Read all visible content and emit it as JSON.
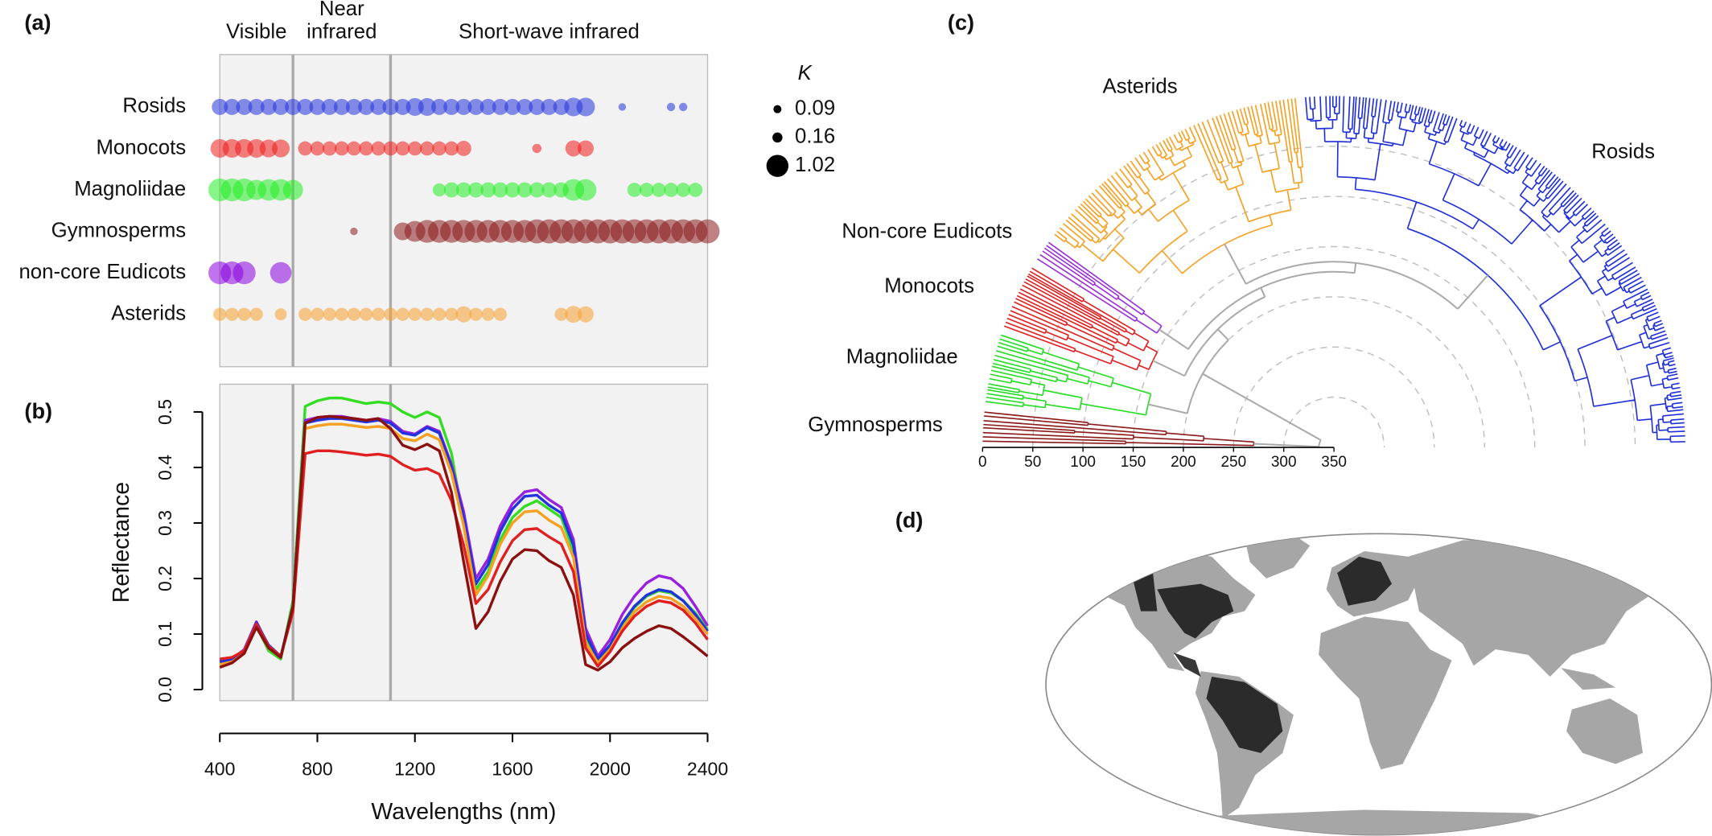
{
  "chart_data": [
    {
      "type": "scatter",
      "panel_label": "(a)",
      "x": [
        400,
        450,
        500,
        550,
        600,
        650,
        700,
        750,
        800,
        850,
        900,
        950,
        1000,
        1050,
        1100,
        1150,
        1200,
        1250,
        1300,
        1350,
        1400,
        1450,
        1500,
        1550,
        1600,
        1650,
        1700,
        1750,
        1800,
        1850,
        1900,
        1950,
        2000,
        2050,
        2100,
        2150,
        2200,
        2250,
        2300,
        2350,
        2400
      ],
      "xlim": [
        400,
        2400
      ],
      "vlines": [
        700,
        1100
      ],
      "regions": [
        {
          "lines": [
            "Visible"
          ]
        },
        {
          "lines": [
            "Near",
            "infrared"
          ]
        },
        {
          "lines": [
            "Short-wave infrared"
          ]
        }
      ],
      "series": [
        {
          "name": "Rosids",
          "color": "#2233dd",
          "values": [
            0.45,
            0.45,
            0.45,
            0.45,
            0.45,
            0.45,
            0.45,
            0.45,
            0.45,
            0.45,
            0.45,
            0.45,
            0.45,
            0.45,
            0.45,
            0.45,
            0.55,
            0.55,
            0.45,
            0.45,
            0.45,
            0.45,
            0.45,
            0.45,
            0.45,
            0.45,
            0.45,
            0.45,
            0.45,
            0.6,
            0.6,
            null,
            null,
            0.1,
            null,
            null,
            null,
            0.12,
            0.12,
            null,
            null
          ]
        },
        {
          "name": "Monocots",
          "color": "#ee1c1c",
          "values": [
            0.6,
            0.6,
            0.6,
            0.6,
            0.55,
            0.55,
            null,
            0.35,
            0.35,
            0.35,
            0.35,
            0.35,
            0.35,
            0.35,
            0.35,
            0.35,
            0.35,
            0.35,
            0.35,
            0.35,
            0.4,
            null,
            null,
            null,
            null,
            null,
            0.15,
            null,
            null,
            0.45,
            0.45,
            null,
            null,
            null,
            null,
            null,
            null,
            null,
            null,
            null,
            null
          ]
        },
        {
          "name": "Magnoliidae",
          "color": "#22ee22",
          "values": [
            0.9,
            0.9,
            0.9,
            0.7,
            0.8,
            0.8,
            0.7,
            null,
            null,
            null,
            null,
            null,
            null,
            null,
            null,
            null,
            null,
            null,
            0.3,
            0.4,
            0.4,
            0.4,
            0.4,
            0.4,
            0.4,
            0.4,
            0.4,
            0.4,
            0.4,
            0.8,
            0.8,
            null,
            null,
            null,
            0.35,
            0.35,
            0.35,
            0.35,
            0.35,
            0.35,
            null
          ]
        },
        {
          "name": "Gymnosperms",
          "color": "#8b1a1a",
          "values": [
            null,
            null,
            null,
            null,
            null,
            null,
            null,
            null,
            null,
            null,
            null,
            0.1,
            null,
            null,
            null,
            0.55,
            0.75,
            0.9,
            0.9,
            0.9,
            0.9,
            0.9,
            0.9,
            0.9,
            0.9,
            0.9,
            1.0,
            1.0,
            1.0,
            1.0,
            1.0,
            1.0,
            1.0,
            1.0,
            1.0,
            1.0,
            1.0,
            1.0,
            1.0,
            1.0,
            1.0
          ]
        },
        {
          "name": "non-core Eudicots",
          "color": "#8a00e0",
          "values": [
            0.9,
            0.9,
            0.9,
            null,
            null,
            0.8,
            null,
            null,
            null,
            null,
            null,
            null,
            null,
            null,
            null,
            null,
            null,
            null,
            null,
            null,
            null,
            null,
            null,
            null,
            null,
            null,
            null,
            null,
            null,
            null,
            null,
            null,
            null,
            null,
            null,
            null,
            null,
            null,
            null,
            null,
            null
          ]
        },
        {
          "name": "Asterids",
          "color": "#f7a030",
          "values": [
            0.3,
            0.3,
            0.3,
            0.3,
            null,
            0.25,
            null,
            0.3,
            0.3,
            0.3,
            0.3,
            0.3,
            0.3,
            0.3,
            0.3,
            0.3,
            0.3,
            0.3,
            0.3,
            0.3,
            0.45,
            0.3,
            0.3,
            0.3,
            null,
            null,
            null,
            null,
            0.3,
            0.5,
            0.45,
            null,
            null,
            null,
            null,
            null,
            null,
            null,
            null,
            null,
            null
          ]
        }
      ],
      "size_legend": {
        "title": "K",
        "values": [
          0.09,
          0.16,
          1.02
        ]
      }
    },
    {
      "type": "line",
      "panel_label": "(b)",
      "xlabel": "Wavelengths (nm)",
      "ylabel": "Reflectance",
      "x": [
        400,
        450,
        500,
        550,
        600,
        650,
        700,
        750,
        800,
        850,
        900,
        950,
        1000,
        1050,
        1100,
        1150,
        1200,
        1250,
        1300,
        1350,
        1400,
        1450,
        1500,
        1550,
        1600,
        1650,
        1700,
        1750,
        1800,
        1850,
        1900,
        1950,
        2000,
        2050,
        2100,
        2150,
        2200,
        2250,
        2300,
        2350,
        2400
      ],
      "xlim": [
        400,
        2400
      ],
      "xticks": [
        400,
        800,
        1200,
        1600,
        2000,
        2400
      ],
      "ylim": [
        -0.02,
        0.55
      ],
      "yticks": [
        {
          "value": 0,
          "label": "0.0"
        },
        0.1,
        0.2,
        0.3,
        0.4,
        0.5
      ],
      "vlines": [
        700,
        1100
      ],
      "series": [
        {
          "color": "#33dd22",
          "values": [
            0.048,
            0.05,
            0.068,
            0.115,
            0.07,
            0.055,
            0.16,
            0.51,
            0.52,
            0.525,
            0.525,
            0.52,
            0.515,
            0.518,
            0.515,
            0.5,
            0.49,
            0.5,
            0.49,
            0.425,
            0.3,
            0.18,
            0.212,
            0.27,
            0.31,
            0.33,
            0.34,
            0.325,
            0.31,
            0.25,
            0.09,
            0.05,
            0.078,
            0.118,
            0.148,
            0.168,
            0.178,
            0.174,
            0.16,
            0.138,
            0.108
          ]
        },
        {
          "color": "#9a20e0",
          "values": [
            0.052,
            0.055,
            0.072,
            0.122,
            0.078,
            0.058,
            0.15,
            0.485,
            0.49,
            0.492,
            0.492,
            0.488,
            0.485,
            0.488,
            0.483,
            0.465,
            0.46,
            0.474,
            0.465,
            0.405,
            0.32,
            0.2,
            0.235,
            0.295,
            0.335,
            0.356,
            0.36,
            0.342,
            0.328,
            0.27,
            0.11,
            0.06,
            0.09,
            0.135,
            0.168,
            0.192,
            0.205,
            0.2,
            0.182,
            0.15,
            0.115
          ]
        },
        {
          "color": "#2233dd",
          "values": [
            0.05,
            0.055,
            0.07,
            0.12,
            0.08,
            0.06,
            0.15,
            0.48,
            0.485,
            0.488,
            0.488,
            0.485,
            0.482,
            0.485,
            0.48,
            0.462,
            0.458,
            0.472,
            0.462,
            0.4,
            0.31,
            0.19,
            0.225,
            0.285,
            0.325,
            0.348,
            0.35,
            0.332,
            0.318,
            0.26,
            0.1,
            0.055,
            0.08,
            0.12,
            0.15,
            0.17,
            0.18,
            0.176,
            0.16,
            0.135,
            0.105
          ]
        },
        {
          "color": "#f5a020",
          "values": [
            0.045,
            0.05,
            0.065,
            0.115,
            0.075,
            0.058,
            0.145,
            0.47,
            0.475,
            0.478,
            0.478,
            0.475,
            0.472,
            0.474,
            0.47,
            0.452,
            0.448,
            0.46,
            0.45,
            0.39,
            0.295,
            0.17,
            0.205,
            0.262,
            0.3,
            0.32,
            0.322,
            0.305,
            0.292,
            0.238,
            0.085,
            0.048,
            0.072,
            0.11,
            0.14,
            0.158,
            0.168,
            0.164,
            0.15,
            0.128,
            0.1
          ]
        },
        {
          "color": "#e02020",
          "values": [
            0.055,
            0.058,
            0.07,
            0.118,
            0.078,
            0.06,
            0.14,
            0.425,
            0.43,
            0.43,
            0.428,
            0.425,
            0.422,
            0.424,
            0.42,
            0.405,
            0.395,
            0.398,
            0.388,
            0.34,
            0.26,
            0.155,
            0.18,
            0.23,
            0.268,
            0.288,
            0.29,
            0.275,
            0.262,
            0.212,
            0.075,
            0.042,
            0.068,
            0.105,
            0.132,
            0.15,
            0.16,
            0.156,
            0.143,
            0.12,
            0.09
          ]
        },
        {
          "color": "#8b1010",
          "values": [
            0.04,
            0.048,
            0.065,
            0.112,
            0.075,
            0.058,
            0.15,
            0.48,
            0.49,
            0.492,
            0.49,
            0.488,
            0.485,
            0.488,
            0.47,
            0.44,
            0.432,
            0.442,
            0.43,
            0.355,
            0.23,
            0.11,
            0.14,
            0.195,
            0.235,
            0.252,
            0.25,
            0.232,
            0.22,
            0.17,
            0.045,
            0.035,
            0.05,
            0.075,
            0.092,
            0.105,
            0.115,
            0.11,
            0.095,
            0.078,
            0.06
          ]
        }
      ]
    },
    {
      "type": "tree",
      "panel_label": "(c)",
      "clades": [
        {
          "name": "Gymnosperms",
          "color": "#8b1a1a"
        },
        {
          "name": "Magnoliidae",
          "color": "#22dd22"
        },
        {
          "name": "Monocots",
          "color": "#e02020"
        },
        {
          "name": "Non-core Eudicots",
          "color": "#9a30d8"
        },
        {
          "name": "Asterids",
          "color": "#f5a020"
        },
        {
          "name": "Rosids",
          "color": "#1f2fd8"
        }
      ],
      "xlim": [
        0,
        350
      ],
      "xticks": [
        0,
        50,
        100,
        150,
        200,
        250,
        300,
        350
      ]
    },
    {
      "type": "map",
      "panel_label": "(d)"
    }
  ]
}
